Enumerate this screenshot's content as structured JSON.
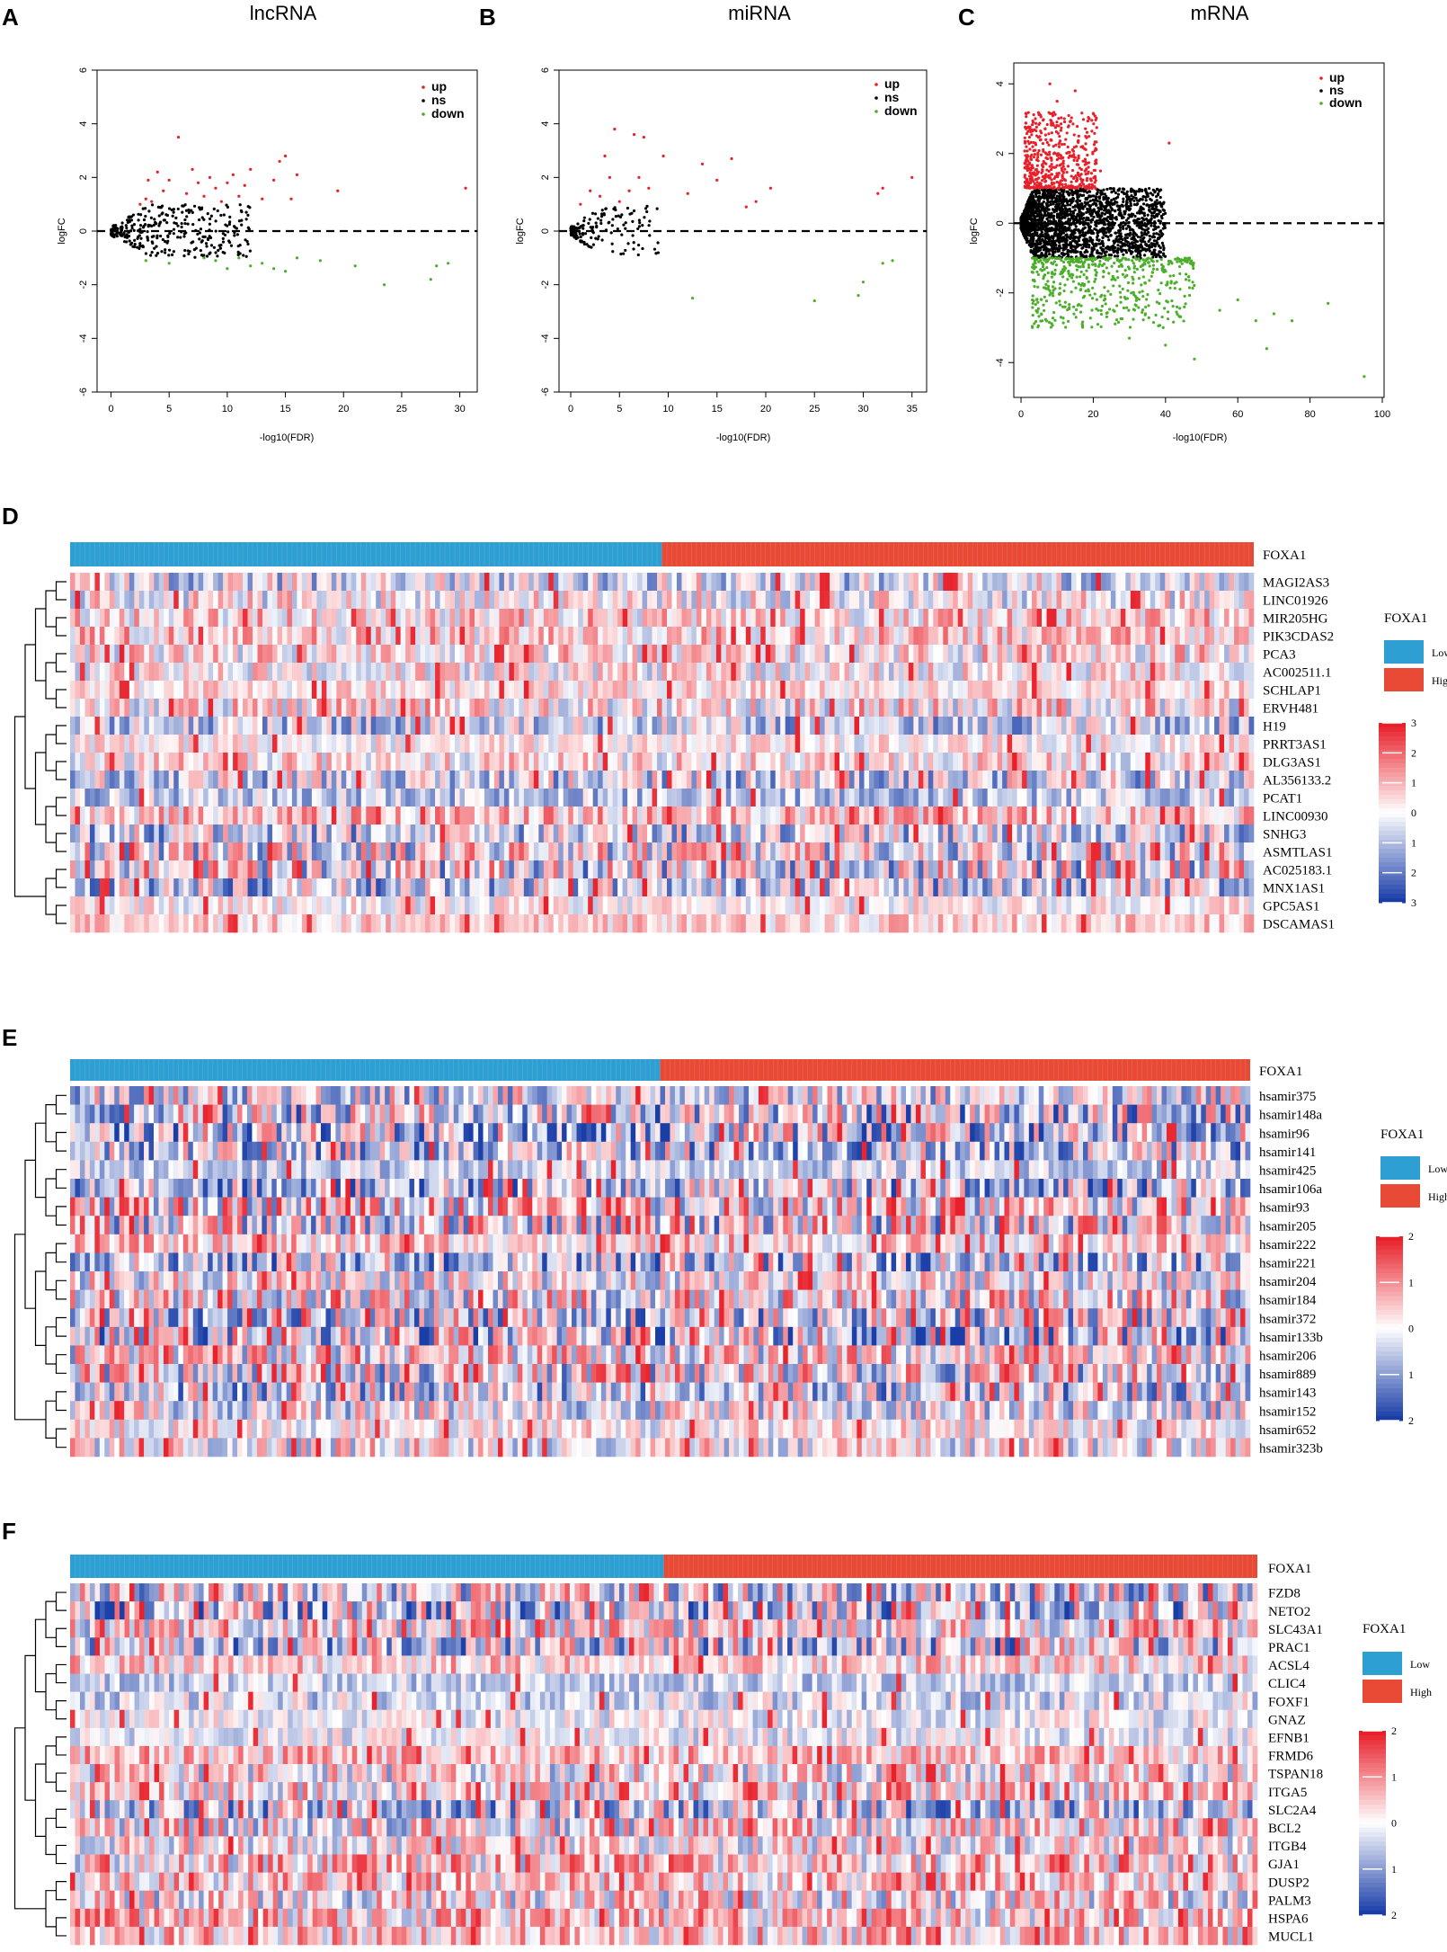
{
  "colors": {
    "up": "#e8202a",
    "ns": "#000000",
    "down": "#4caf2a",
    "low": "#2e9fd2",
    "high": "#e84a35",
    "heat_high": "#e8202a",
    "heat_low": "#1a3ea8",
    "heat_mid": "#ffffff"
  },
  "chart_data": [
    {
      "type": "scatter",
      "panel": "A",
      "title": "lncRNA",
      "xlabel": "-log10(FDR)",
      "ylabel": "logFC",
      "xlim": [
        -1.2,
        31.5
      ],
      "ylim": [
        -6,
        6
      ],
      "xticks": [
        0,
        5,
        10,
        15,
        20,
        25,
        30
      ],
      "yticks": [
        -6,
        -4,
        -2,
        0,
        2,
        4,
        6
      ],
      "legend": [
        "up",
        "ns",
        "down"
      ],
      "legend_position": "top-right",
      "series": [
        {
          "name": "up",
          "points": [
            [
              2.5,
              1.0
            ],
            [
              3,
              1.2
            ],
            [
              3.2,
              1.9
            ],
            [
              3.5,
              1.1
            ],
            [
              4,
              2.2
            ],
            [
              4.5,
              1.5
            ],
            [
              5,
              1.9
            ],
            [
              5.8,
              3.5
            ],
            [
              6.5,
              1.4
            ],
            [
              7,
              2.3
            ],
            [
              7.5,
              1.8
            ],
            [
              8,
              1.3
            ],
            [
              8.5,
              2.0
            ],
            [
              9,
              1.6
            ],
            [
              9.5,
              1.1
            ],
            [
              10,
              1.8
            ],
            [
              10.5,
              2.1
            ],
            [
              11,
              1.3
            ],
            [
              11.5,
              1.7
            ],
            [
              12,
              2.3
            ],
            [
              13,
              1.2
            ],
            [
              14,
              1.9
            ],
            [
              14.5,
              2.6
            ],
            [
              15,
              2.8
            ],
            [
              15.5,
              1.2
            ],
            [
              16,
              2.1
            ],
            [
              19.5,
              1.5
            ],
            [
              30.5,
              1.6
            ]
          ]
        },
        {
          "name": "down",
          "points": [
            [
              3,
              -1.1
            ],
            [
              5,
              -1.2
            ],
            [
              8,
              -1.0
            ],
            [
              9,
              -1.1
            ],
            [
              10,
              -1.4
            ],
            [
              11,
              -1.0
            ],
            [
              12,
              -1.3
            ],
            [
              13,
              -1.2
            ],
            [
              14,
              -1.4
            ],
            [
              15,
              -1.5
            ],
            [
              16,
              -1.0
            ],
            [
              18,
              -1.1
            ],
            [
              21,
              -1.3
            ],
            [
              23.5,
              -2.0
            ],
            [
              27.5,
              -1.8
            ],
            [
              28,
              -1.3
            ],
            [
              29,
              -1.2
            ]
          ]
        }
      ],
      "ns_cloud": {
        "count": 320,
        "x_max": 12,
        "y_max": 1.0,
        "seed": 11
      }
    },
    {
      "type": "scatter",
      "panel": "B",
      "title": "miRNA",
      "xlabel": "-log10(FDR)",
      "ylabel": "logFC",
      "xlim": [
        -1.2,
        36.5
      ],
      "ylim": [
        -6,
        6
      ],
      "xticks": [
        0,
        5,
        10,
        15,
        20,
        25,
        30,
        35
      ],
      "yticks": [
        -6,
        -4,
        -2,
        0,
        2,
        4,
        6
      ],
      "legend": [
        "up",
        "ns",
        "down"
      ],
      "legend_position": "top-right",
      "series": [
        {
          "name": "up",
          "points": [
            [
              1,
              1.0
            ],
            [
              2,
              1.5
            ],
            [
              3,
              1.3
            ],
            [
              3.5,
              2.8
            ],
            [
              4,
              2.0
            ],
            [
              4.5,
              3.8
            ],
            [
              5,
              1.1
            ],
            [
              6,
              1.5
            ],
            [
              6.5,
              3.6
            ],
            [
              7,
              2.0
            ],
            [
              7.5,
              3.5
            ],
            [
              8,
              1.6
            ],
            [
              9.5,
              2.8
            ],
            [
              12,
              1.4
            ],
            [
              13.5,
              2.5
            ],
            [
              15,
              1.9
            ],
            [
              16.5,
              2.7
            ],
            [
              18,
              0.9
            ],
            [
              19,
              1.1
            ],
            [
              20.5,
              1.6
            ],
            [
              31.5,
              1.4
            ],
            [
              32,
              1.6
            ],
            [
              35,
              2.0
            ]
          ]
        },
        {
          "name": "down",
          "points": [
            [
              12.5,
              -2.5
            ],
            [
              25,
              -2.6
            ],
            [
              29.5,
              -2.4
            ],
            [
              30,
              -1.9
            ],
            [
              32,
              -1.2
            ],
            [
              33,
              -1.1
            ]
          ]
        }
      ],
      "ns_cloud": {
        "count": 150,
        "x_max": 9,
        "y_max": 0.95,
        "seed": 23
      }
    },
    {
      "type": "scatter",
      "panel": "C",
      "title": "mRNA",
      "xlabel": "-log10(FDR)",
      "ylabel": "logFC",
      "xlim": [
        -2,
        100.5
      ],
      "ylim": [
        -5,
        4.6
      ],
      "xticks": [
        0,
        20,
        40,
        60,
        80,
        100
      ],
      "yticks": [
        -4,
        -2,
        0,
        2,
        4
      ],
      "legend": [
        "up",
        "ns",
        "down"
      ],
      "legend_position": "top-right",
      "series": [
        {
          "name": "up",
          "points": [
            [
              8,
              4.0
            ],
            [
              10,
              3.5
            ],
            [
              12,
              3.0
            ],
            [
              15,
              3.8
            ],
            [
              16,
              2.5
            ],
            [
              22,
              1.5
            ],
            [
              41,
              2.3
            ]
          ]
        },
        {
          "name": "down",
          "points": [
            [
              30,
              -3.3
            ],
            [
              40,
              -3.5
            ],
            [
              48,
              -3.9
            ],
            [
              55,
              -2.5
            ],
            [
              60,
              -2.2
            ],
            [
              65,
              -2.8
            ],
            [
              68,
              -3.6
            ],
            [
              70,
              -2.6
            ],
            [
              75,
              -2.8
            ],
            [
              85,
              -2.3
            ],
            [
              95,
              -4.4
            ]
          ]
        }
      ],
      "up_cloud": {
        "count": 520,
        "x_max": 20,
        "y_min": 1.0,
        "y_max": 3.2,
        "seed": 5
      },
      "down_cloud": {
        "count": 520,
        "x_max": 45,
        "y_min": -1.0,
        "y_max": -3.0,
        "seed": 7
      },
      "ns_cloud": {
        "count": 2200,
        "x_max": 40,
        "y_max": 1.0,
        "seed": 3
      }
    },
    {
      "type": "heatmap",
      "panel": "D",
      "annotation_label": "FOXA1",
      "legend_title": "FOXA1",
      "groups": [
        "Low",
        "High"
      ],
      "scale_ticks": [
        "3",
        "2",
        "1",
        "0",
        "1",
        "2",
        "3"
      ],
      "scale_values": [
        3,
        2,
        1,
        0,
        -1,
        -2,
        -3
      ],
      "rows": [
        "MAGI2AS3",
        "LINC01926",
        "MIR205HG",
        "PIK3CDAS2",
        "PCA3",
        "AC002511.1",
        "SCHLAP1",
        "ERVH481",
        "H19",
        "PRRT3AS1",
        "DLG3AS1",
        "AL356133.2",
        "PCAT1",
        "LINC00930",
        "SNHG3",
        "ASMTLAS1",
        "AC025183.1",
        "MNX1AS1",
        "GPC5AS1",
        "DSCAMAS1"
      ],
      "columns": 240,
      "low_fraction": 0.5
    },
    {
      "type": "heatmap",
      "panel": "E",
      "annotation_label": "FOXA1",
      "legend_title": "FOXA1",
      "groups": [
        "Low",
        "High"
      ],
      "scale_ticks": [
        "2",
        "1",
        "0",
        "1",
        "2"
      ],
      "scale_values": [
        2,
        1,
        0,
        -1,
        -2
      ],
      "rows": [
        "hsamir375",
        "hsamir148a",
        "hsamir96",
        "hsamir141",
        "hsamir425",
        "hsamir106a",
        "hsamir93",
        "hsamir205",
        "hsamir222",
        "hsamir221",
        "hsamir204",
        "hsamir184",
        "hsamir372",
        "hsamir133b",
        "hsamir206",
        "hsamir889",
        "hsamir143",
        "hsamir152",
        "hsamir652",
        "hsamir323b"
      ],
      "columns": 240,
      "low_fraction": 0.5
    },
    {
      "type": "heatmap",
      "panel": "F",
      "annotation_label": "FOXA1",
      "legend_title": "FOXA1",
      "groups": [
        "Low",
        "High"
      ],
      "scale_ticks": [
        "2",
        "1",
        "0",
        "1",
        "2"
      ],
      "scale_values": [
        2,
        1,
        0,
        -1,
        -2
      ],
      "rows": [
        "FZD8",
        "NETO2",
        "SLC43A1",
        "PRAC1",
        "ACSL4",
        "CLIC4",
        "FOXF1",
        "GNAZ",
        "EFNB1",
        "FRMD6",
        "TSPAN18",
        "ITGA5",
        "SLC2A4",
        "BCL2",
        "ITGB4",
        "GJA1",
        "DUSP2",
        "PALM3",
        "HSPA6",
        "MUCL1"
      ],
      "columns": 240,
      "low_fraction": 0.5
    }
  ]
}
